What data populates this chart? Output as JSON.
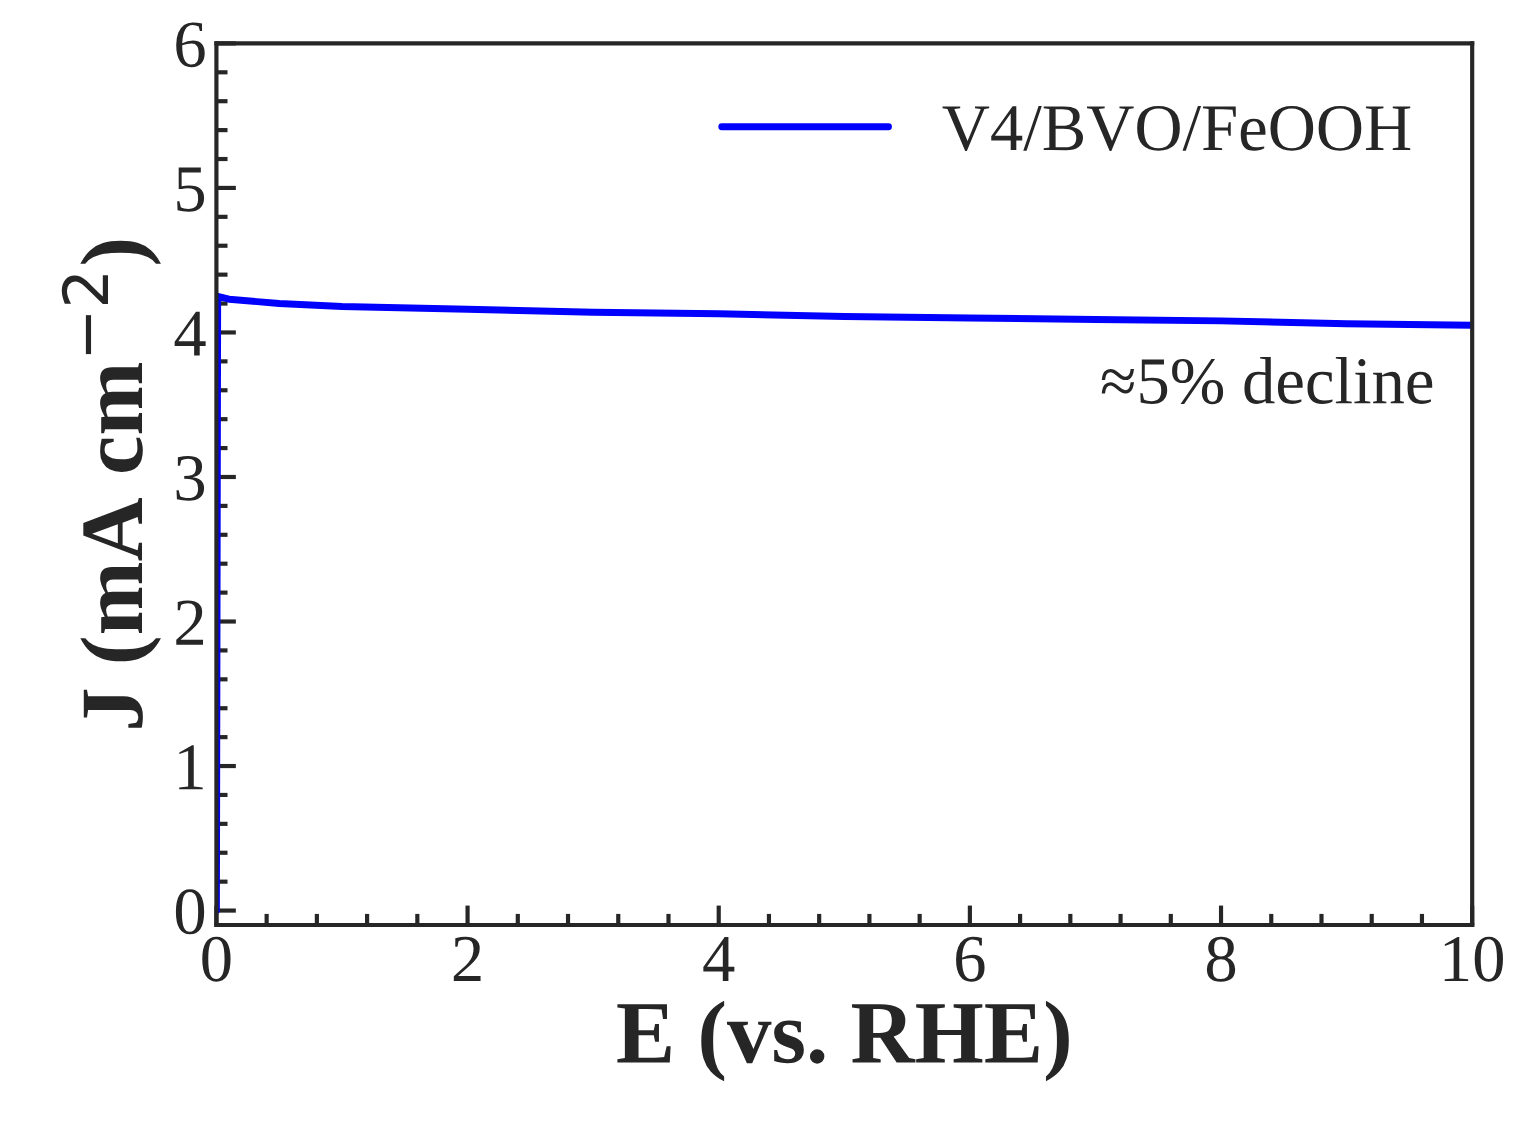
{
  "chart_data": {
    "type": "line",
    "xlabel": "E (vs. RHE)",
    "ylabel": "J (mA cm$^{−2}$)",
    "x": [
      0,
      0.01,
      0.1,
      0.5,
      1,
      2,
      3,
      4,
      5,
      6,
      7,
      8,
      9,
      10
    ],
    "series": [
      {
        "name": "V4/BVO/FeOOH",
        "color": "#0000ff",
        "values": [
          0,
          4.25,
          4.23,
          4.2,
          4.18,
          4.16,
          4.14,
          4.13,
          4.11,
          4.1,
          4.09,
          4.08,
          4.06,
          4.05
        ]
      }
    ],
    "xlim": [
      0,
      10
    ],
    "xticks": [
      0,
      2,
      4,
      6,
      8,
      10
    ],
    "ylim": [
      -0.1,
      6
    ],
    "yticks": [
      0,
      1,
      2,
      3,
      4,
      5,
      6
    ],
    "annotations": [
      "≈5% decline"
    ],
    "legend": "top right",
    "grid": false
  }
}
